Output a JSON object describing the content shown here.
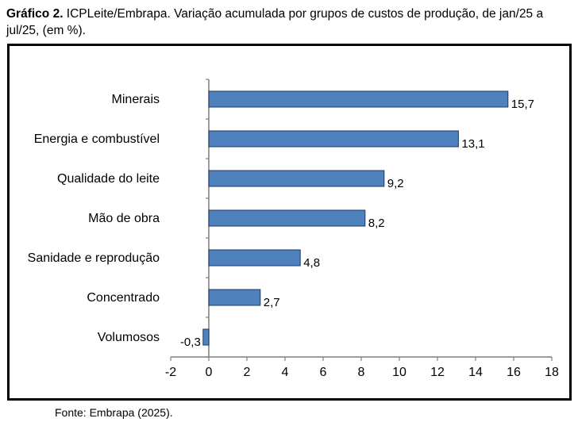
{
  "caption": {
    "label": "Gráfico 2.",
    "text": " ICPLeite/Embrapa. Variação acumulada por grupos de custos de produção, de jan/25 a jul/25, (em %)."
  },
  "source": "Fonte: Embrapa (2025).",
  "colors": {
    "bar": "#4f81bd",
    "bar_stroke": "#1f3864",
    "axis": "#7f7f7f"
  },
  "chart_data": {
    "type": "bar",
    "orientation": "horizontal",
    "categories": [
      "Minerais",
      "Energia e combustível",
      "Qualidade do leite",
      "Mão de obra",
      "Sanidade e reprodução",
      "Concentrado",
      "Volumosos"
    ],
    "values": [
      15.7,
      13.1,
      9.2,
      8.2,
      4.8,
      2.7,
      -0.3
    ],
    "data_labels": [
      "15,7",
      "13,1",
      "9,2",
      "8,2",
      "4,8",
      "2,7",
      "-0,3"
    ],
    "xlim": [
      -2,
      18
    ],
    "xticks": [
      "-2",
      "0",
      "2",
      "4",
      "6",
      "8",
      "10",
      "12",
      "14",
      "16",
      "18"
    ],
    "grid": false,
    "legend": "none"
  }
}
